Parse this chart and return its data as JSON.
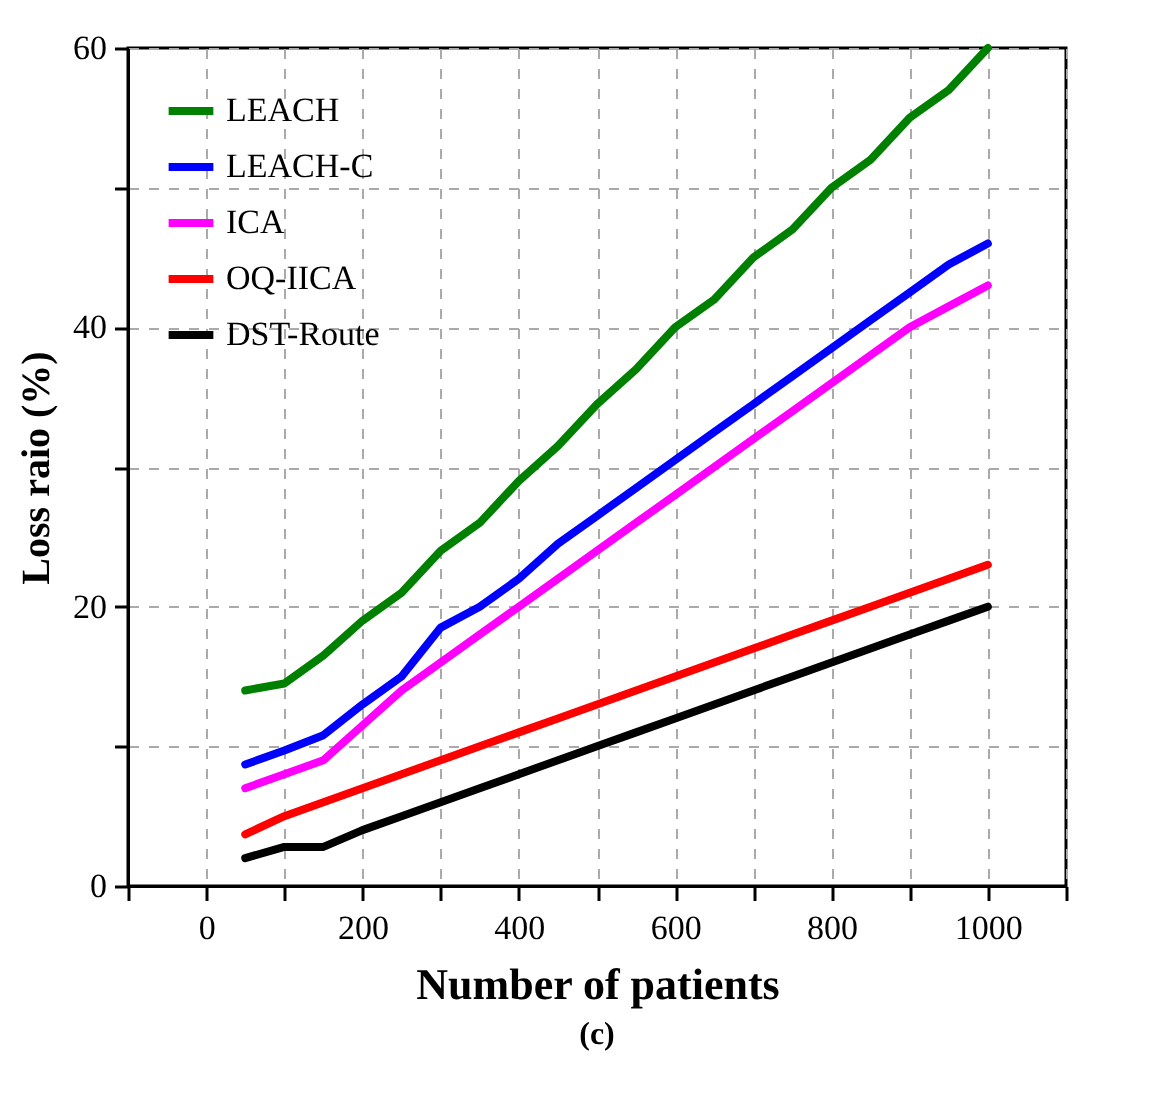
{
  "chart_data": {
    "type": "line",
    "xlabel": "Number of patients",
    "ylabel": "Loss raio (%)",
    "annotations": [
      "(c)"
    ],
    "x": [
      50,
      100,
      150,
      200,
      250,
      300,
      350,
      400,
      450,
      500,
      550,
      600,
      650,
      700,
      750,
      800,
      850,
      900,
      950,
      1000
    ],
    "series": [
      {
        "name": "LEACH",
        "color": "#008000",
        "values": [
          14,
          14.5,
          16.5,
          19,
          21,
          24,
          26,
          29,
          31.5,
          34.5,
          37,
          40,
          42,
          45,
          47,
          50,
          52,
          55,
          57,
          60
        ]
      },
      {
        "name": "LEACH-C",
        "color": "#0000ff",
        "values": [
          8.7,
          9.7,
          10.8,
          13,
          15,
          18.5,
          20,
          22,
          24.5,
          26.5,
          28.5,
          30.5,
          32.5,
          34.5,
          36.5,
          38.5,
          40.5,
          42.5,
          44.5,
          46
        ]
      },
      {
        "name": "ICA",
        "color": "#ff00ff",
        "values": [
          7,
          8,
          9,
          11.5,
          14,
          16,
          18,
          20,
          22,
          24,
          26,
          28,
          30,
          32,
          34,
          36,
          38,
          40,
          41.5,
          43
        ]
      },
      {
        "name": "OQ-IICA",
        "color": "#ff0000",
        "values": [
          3.7,
          5,
          6,
          7,
          8,
          9,
          10,
          11,
          12,
          13,
          14,
          15,
          16,
          17,
          18,
          19,
          20,
          21,
          22,
          23
        ]
      },
      {
        "name": "DST-Route",
        "color": "#000000",
        "values": [
          2,
          2.8,
          2.8,
          4,
          5,
          6,
          7,
          8,
          9,
          10,
          11,
          12,
          13,
          14,
          15,
          16,
          17,
          18,
          19,
          20
        ]
      }
    ],
    "xlim": [
      -100,
      1100
    ],
    "xticks": [
      {
        "value": -100,
        "label": null
      },
      0,
      {
        "value": 100,
        "label": null
      },
      200,
      {
        "value": 300,
        "label": null
      },
      400,
      {
        "value": 500,
        "label": null
      },
      600,
      {
        "value": 700,
        "label": null
      },
      800,
      {
        "value": 900,
        "label": null
      },
      1000,
      {
        "value": 1100,
        "label": null
      }
    ],
    "ylim": [
      0,
      60
    ],
    "yticks": [
      0,
      {
        "value": 10,
        "label": null
      },
      20,
      {
        "value": 30,
        "label": null
      },
      40,
      {
        "value": 50,
        "label": null
      },
      60
    ],
    "grid": true,
    "legend": "top left",
    "line_style": "solid",
    "marker": "none"
  }
}
